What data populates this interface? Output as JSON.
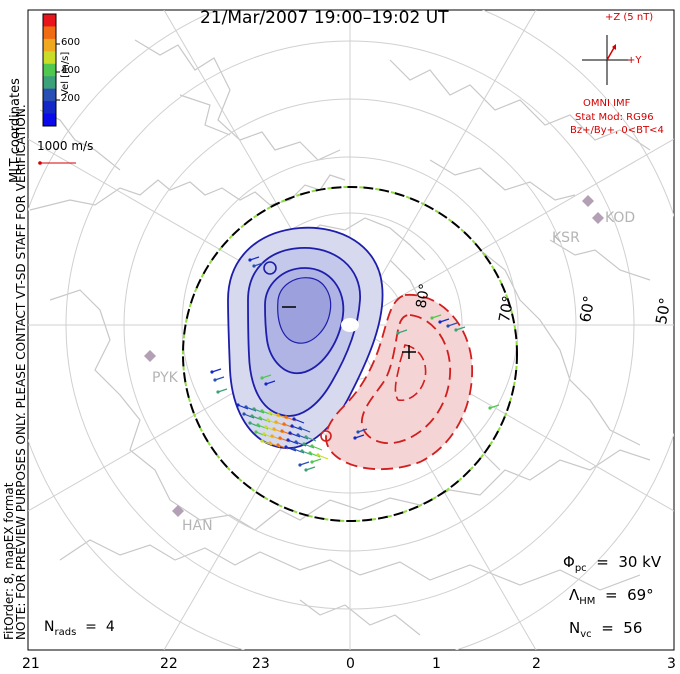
{
  "title": "21/Mar/2007  19:00–19:02  UT",
  "colorbar": {
    "label": "Vel [m/s]",
    "ticks": [
      "600",
      "400",
      "200"
    ],
    "colors": [
      "#e8161c",
      "#f06c14",
      "#f0a820",
      "#c8dc28",
      "#50c850",
      "#3ca078",
      "#2850b4",
      "#1428c8",
      "#0a0aea"
    ]
  },
  "coords_label": "MLT coordinates",
  "left_note": {
    "line1": "NOTE: FOR PREVIEW PURPOSES ONLY. PLEASE CONTACT VT-SD STAFF FOR VERIFICATION.",
    "line2": "FitOrder: 8,  mapEX format"
  },
  "ref_vector": "1000 m/s",
  "imf": {
    "scale": "+Z (5 nT)",
    "y_axis": "+Y",
    "source": "OMNI IMF",
    "model": "Stat Mod: RG96",
    "condition": "Bz+/By+, 0<BT<4"
  },
  "latitude_labels": [
    "80°",
    "70°",
    "60°",
    "50°"
  ],
  "radar_sites": [
    "KSR",
    "KOD",
    "PYK",
    "HAN"
  ],
  "stats": {
    "phi_pc": "Φpc  =  30 kV",
    "lambda_hm": "ΛHM  =  69°",
    "n_vc": "Nvc  =  56",
    "n_rads": "Nrads  =  4"
  },
  "potential_extrema": {
    "minimum": "−",
    "maximum": "+"
  },
  "mlt_axis": [
    "21",
    "22",
    "23",
    "0",
    "1",
    "2",
    "3"
  ],
  "colors": {
    "negative_cell": "#1e1eaa",
    "positive_cell": "#d21e1e",
    "coast": "#c8c8c8",
    "grid": "#d0d0d0"
  }
}
